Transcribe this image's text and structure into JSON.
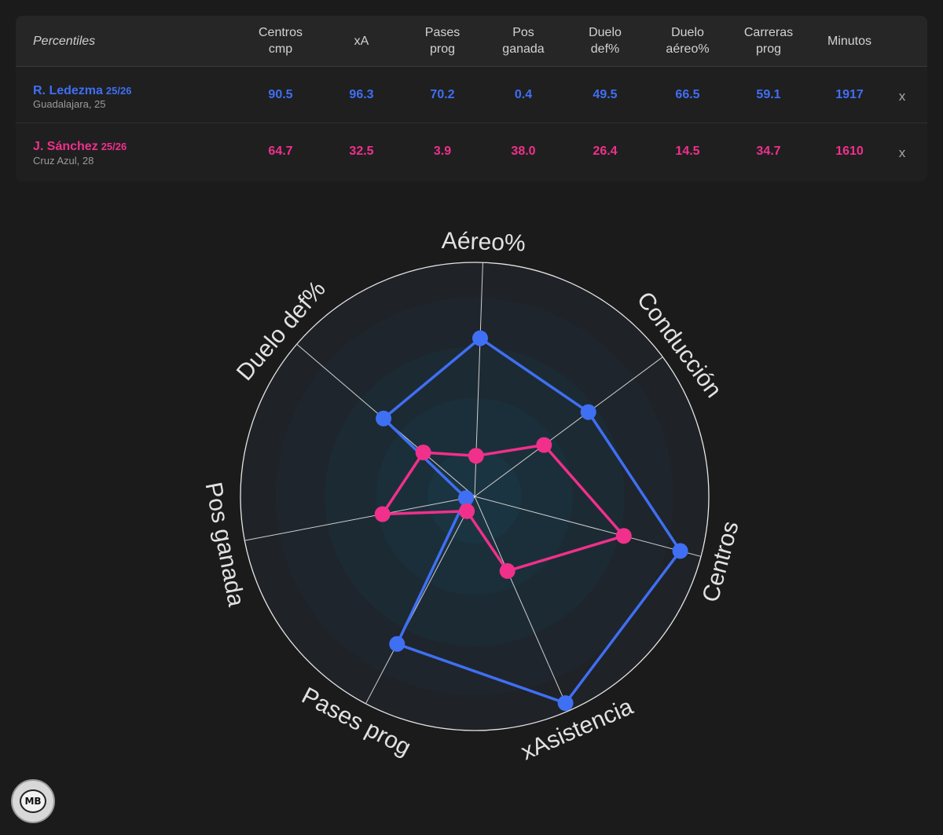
{
  "table": {
    "header_label": "Percentiles",
    "columns": [
      "Centros\ncmp",
      "xA",
      "Pases\nprog",
      "Pos\nganada",
      "Duelo\ndef%",
      "Duelo\naéreo%",
      "Carreras\nprog",
      "Minutos"
    ],
    "remove_label": "x",
    "players": [
      {
        "name": "R. Ledezma",
        "season": "25/26",
        "club": "Guadalajara, 25",
        "color": "#3f6ff3",
        "values": [
          "90.5",
          "96.3",
          "70.2",
          "0.4",
          "49.5",
          "66.5",
          "59.1",
          "1917"
        ]
      },
      {
        "name": "J. Sánchez",
        "season": "25/26",
        "club": "Cruz Azul, 28",
        "color": "#f0308a",
        "values": [
          "64.7",
          "32.5",
          "3.9",
          "38.0",
          "26.4",
          "14.5",
          "34.7",
          "1610"
        ]
      }
    ]
  },
  "chart_data": {
    "type": "radar",
    "axes": [
      "Aéreo%",
      "Conducción",
      "Centros",
      "xAsistencia",
      "Pases prog",
      "Pos ganada",
      "Duelo def%"
    ],
    "range": [
      0,
      100
    ],
    "grid": true,
    "series": [
      {
        "name": "R. Ledezma",
        "color": "#3f6ff3",
        "values": [
          66.5,
          59.1,
          90.5,
          96.3,
          70.2,
          0.4,
          49.5
        ]
      },
      {
        "name": "J. Sánchez",
        "color": "#f0308a",
        "values": [
          14.5,
          34.7,
          64.7,
          32.5,
          3.9,
          38.0,
          26.4
        ]
      }
    ]
  },
  "branding": {
    "logo_text": "MB"
  }
}
